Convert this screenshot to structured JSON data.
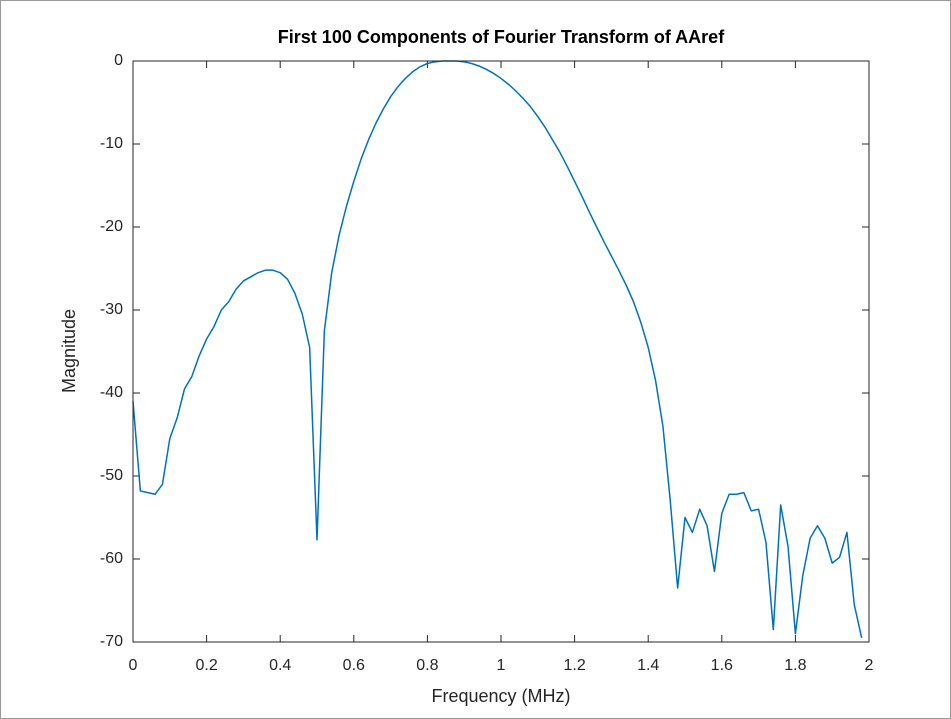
{
  "chart_data": {
    "type": "line",
    "title": "First 100 Components of Fourier Transform of AAref",
    "x_label": "Frequency (MHz)",
    "y_label": "Magnitude",
    "x": [
      0,
      0.02,
      0.04,
      0.06,
      0.08,
      0.1,
      0.12,
      0.14,
      0.16,
      0.18,
      0.2,
      0.22,
      0.24,
      0.26,
      0.28,
      0.3,
      0.32,
      0.34,
      0.36,
      0.38,
      0.4,
      0.42,
      0.44,
      0.46,
      0.48,
      0.5,
      0.52,
      0.54,
      0.56,
      0.58,
      0.6,
      0.62,
      0.64,
      0.66,
      0.68,
      0.7,
      0.72,
      0.74,
      0.76,
      0.78,
      0.8,
      0.82,
      0.84,
      0.86,
      0.88,
      0.9,
      0.92,
      0.94,
      0.96,
      0.98,
      1,
      1.02,
      1.04,
      1.06,
      1.08,
      1.1,
      1.12,
      1.14,
      1.16,
      1.18,
      1.2,
      1.22,
      1.24,
      1.26,
      1.28,
      1.3,
      1.32,
      1.34,
      1.36,
      1.38,
      1.4,
      1.42,
      1.44,
      1.46,
      1.48,
      1.5,
      1.52,
      1.54,
      1.56,
      1.58,
      1.6,
      1.62,
      1.64,
      1.66,
      1.68,
      1.7,
      1.72,
      1.74,
      1.76,
      1.78,
      1.8,
      1.82,
      1.84,
      1.86,
      1.88,
      1.9,
      1.92,
      1.94,
      1.96,
      1.98
    ],
    "series": [
      {
        "color": "#0072bd",
        "values": [
          -41,
          -51.8,
          -52,
          -52.2,
          -51,
          -45.5,
          -43,
          -39.5,
          -38,
          -35.5,
          -33.5,
          -32,
          -30,
          -29,
          -27.5,
          -26.5,
          -26,
          -25.5,
          -25.2,
          -25.2,
          -25.5,
          -26.3,
          -28,
          -30.5,
          -34.5,
          -57.7,
          -32.5,
          -25.5,
          -21,
          -17.5,
          -14.5,
          -11.8,
          -9.5,
          -7.5,
          -5.8,
          -4.3,
          -3.1,
          -2.1,
          -1.3,
          -0.7,
          -0.3,
          -0.1,
          0,
          0,
          0,
          -0.1,
          -0.3,
          -0.6,
          -1,
          -1.5,
          -2.1,
          -2.8,
          -3.6,
          -4.5,
          -5.5,
          -6.7,
          -8,
          -9.5,
          -11,
          -12.7,
          -14.5,
          -16.3,
          -18.2,
          -20,
          -21.8,
          -23.5,
          -25.2,
          -27,
          -29,
          -31.5,
          -34.5,
          -38.5,
          -44,
          -53,
          -63.5,
          -55,
          -56.8,
          -54,
          -56,
          -61.5,
          -54.5,
          -52.2,
          -52.2,
          -52,
          -54.2,
          -54,
          -58,
          -68.5,
          -53.5,
          -58.5,
          -69,
          -62,
          -57.5,
          -56,
          -57.5,
          -60.5,
          -59.8,
          -56.8,
          -65.5,
          -69.5
        ]
      }
    ],
    "xlim": [
      0,
      2
    ],
    "xticks": [
      0,
      0.2,
      0.4,
      0.6,
      0.8,
      1,
      1.2,
      1.4,
      1.6,
      1.8,
      2
    ],
    "ylim": [
      -70,
      0
    ],
    "yticks": [
      -70,
      -60,
      -50,
      -40,
      -30,
      -20,
      -10,
      0
    ],
    "grid": false
  }
}
